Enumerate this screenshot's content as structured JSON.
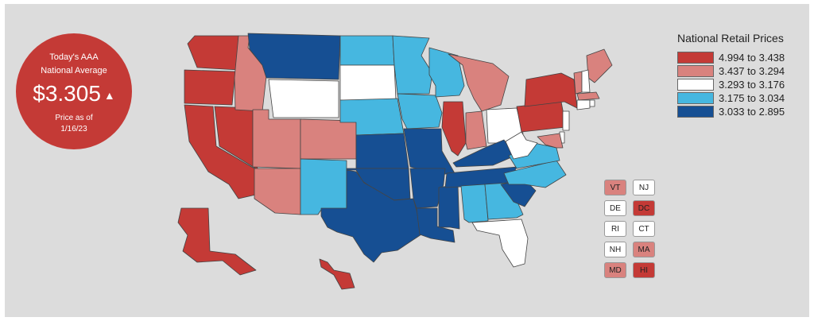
{
  "badge": {
    "line1": "Today's AAA",
    "line2": "National Average",
    "price": "$3.305",
    "trend_icon": "up-triangle-icon",
    "line3": "Price as of",
    "line4": "1/16/23"
  },
  "legend": {
    "title": "National Retail Prices",
    "items": [
      {
        "label": "4.994 to 3.438",
        "color": "#c43a36"
      },
      {
        "label": "3.437 to 3.294",
        "color": "#d9827e"
      },
      {
        "label": "3.293 to 3.176",
        "color": "#ffffff"
      },
      {
        "label": "3.175 to 3.034",
        "color": "#46b7e0"
      },
      {
        "label": "3.033 to 2.895",
        "color": "#164f93"
      }
    ]
  },
  "small_states": [
    {
      "code": "VT",
      "tier": 1
    },
    {
      "code": "NJ",
      "tier": 2
    },
    {
      "code": "DE",
      "tier": 2
    },
    {
      "code": "DC",
      "tier": 0
    },
    {
      "code": "RI",
      "tier": 2
    },
    {
      "code": "CT",
      "tier": 2
    },
    {
      "code": "NH",
      "tier": 2
    },
    {
      "code": "MA",
      "tier": 1
    },
    {
      "code": "MD",
      "tier": 1
    },
    {
      "code": "HI",
      "tier": 0
    }
  ],
  "state_tiers": {
    "WA": 0,
    "OR": 0,
    "CA": 0,
    "NV": 0,
    "ID": 1,
    "MT": 4,
    "WY": 2,
    "UT": 1,
    "AZ": 1,
    "CO": 1,
    "NM": 3,
    "ND": 3,
    "SD": 2,
    "NE": 3,
    "KS": 4,
    "OK": 4,
    "TX": 4,
    "MN": 3,
    "IA": 3,
    "MO": 4,
    "AR": 4,
    "LA": 4,
    "WI": 3,
    "IL": 0,
    "MS": 4,
    "MI": 1,
    "IN": 1,
    "OH": 2,
    "KY": 4,
    "TN": 4,
    "AL": 3,
    "GA": 3,
    "FL": 2,
    "SC": 4,
    "NC": 3,
    "VA": 3,
    "WV": 2,
    "PA": 0,
    "NY": 0,
    "ME": 1,
    "AK": 0,
    "HI": 0
  }
}
